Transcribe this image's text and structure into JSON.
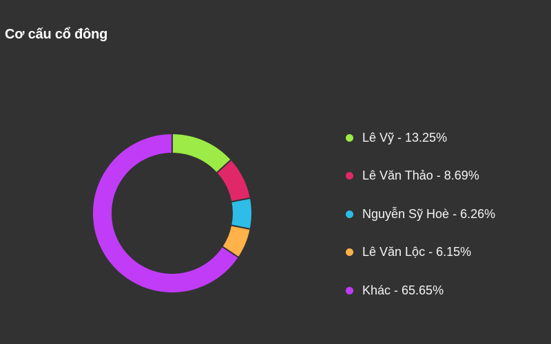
{
  "header": {
    "title": "Cơ cấu cổ đông"
  },
  "chart_data": {
    "type": "pie",
    "subtype": "donut",
    "title": "Cơ cấu cổ đông",
    "categories": [
      "Lê Vỹ",
      "Lê Văn Thảo",
      "Nguyễn Sỹ Hoè",
      "Lê Văn Lộc",
      "Khác"
    ],
    "values": [
      13.25,
      8.69,
      6.26,
      6.15,
      65.65
    ],
    "unit": "%",
    "colors": [
      "#9ceb47",
      "#e02868",
      "#2ebde8",
      "#ffb14a",
      "#c03cf7"
    ],
    "legend_position": "right",
    "start_angle_deg": 0,
    "direction": "clockwise"
  },
  "legend": {
    "items": [
      {
        "label": "Lê Vỹ - 13.25%",
        "color": "#9ceb47"
      },
      {
        "label": "Lê Văn Thảo - 8.69%",
        "color": "#e02868"
      },
      {
        "label": "Nguyễn Sỹ Hoè - 6.26%",
        "color": "#2ebde8"
      },
      {
        "label": "Lê Văn Lộc - 6.15%",
        "color": "#ffb14a"
      },
      {
        "label": "Khác - 65.65%",
        "color": "#c03cf7"
      }
    ]
  }
}
